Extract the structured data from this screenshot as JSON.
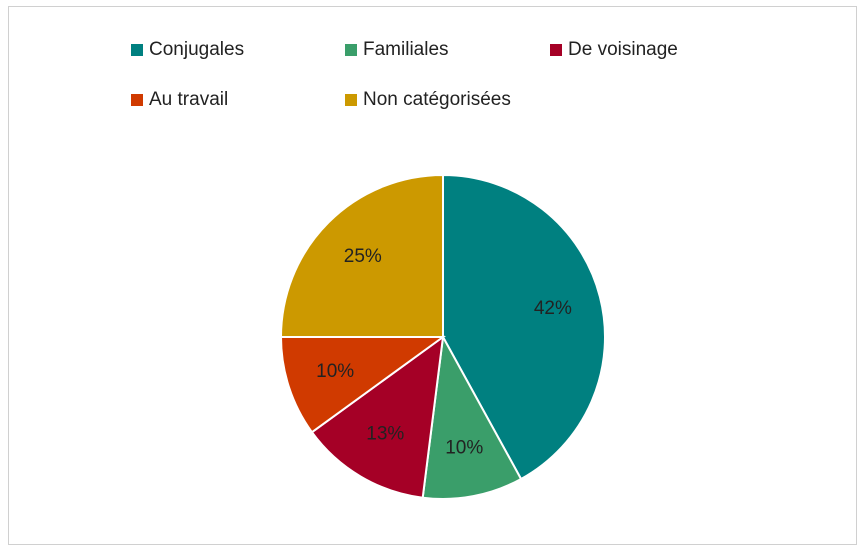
{
  "chart_data": {
    "type": "pie",
    "categories": [
      "Conjugales",
      "Familiales",
      "De voisinage",
      "Au travail",
      "Non catégorisées"
    ],
    "values": [
      42,
      10,
      13,
      10,
      25
    ],
    "value_labels": [
      "42%",
      "10%",
      "13%",
      "10%",
      "25%"
    ],
    "colors": [
      "#008080",
      "#3a9e6a",
      "#a50026",
      "#d03a00",
      "#cc9900"
    ],
    "legend": "top"
  }
}
